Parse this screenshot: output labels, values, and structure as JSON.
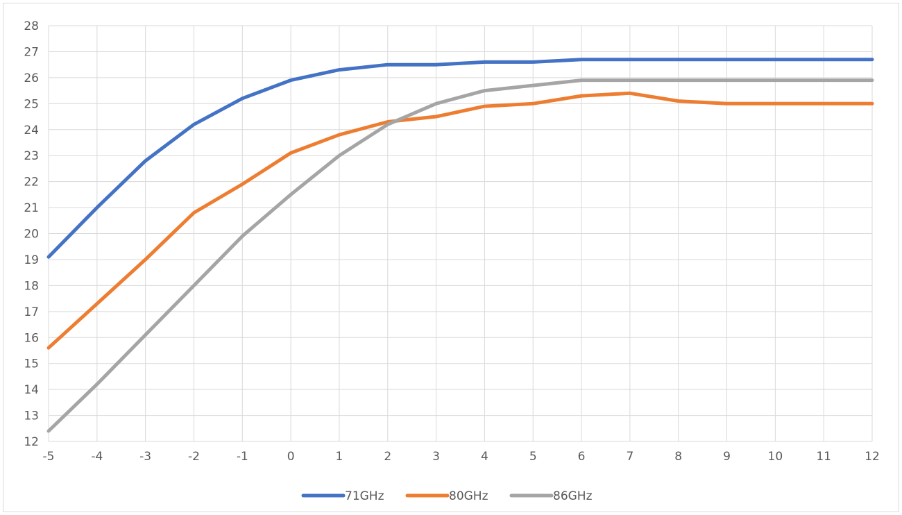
{
  "chart_data": {
    "type": "line",
    "title": "",
    "xlabel": "",
    "ylabel": "",
    "x": [
      -5,
      -4,
      -3,
      -2,
      -1,
      0,
      1,
      2,
      3,
      4,
      5,
      6,
      7,
      8,
      9,
      10,
      11,
      12
    ],
    "xlim": [
      -5,
      12
    ],
    "ylim": [
      12,
      28
    ],
    "y_ticks": [
      "12",
      "13",
      "14",
      "15",
      "16",
      "17",
      "18",
      "19",
      "20",
      "21",
      "22",
      "23",
      "24",
      "25",
      "26",
      "27",
      "28"
    ],
    "x_ticks": [
      "-5",
      "-4",
      "-3",
      "-2",
      "-1",
      "0",
      "1",
      "2",
      "3",
      "4",
      "5",
      "6",
      "7",
      "8",
      "9",
      "10",
      "11",
      "12"
    ],
    "grid": true,
    "legend_position": "bottom",
    "series": [
      {
        "name": "71GHz",
        "color": "#4472c4",
        "values": [
          19.1,
          21.0,
          22.8,
          24.2,
          25.2,
          25.9,
          26.3,
          26.5,
          26.5,
          26.6,
          26.6,
          26.7,
          26.7,
          26.7,
          26.7,
          26.7,
          26.7,
          26.7
        ]
      },
      {
        "name": "80GHz",
        "color": "#ed7d31",
        "values": [
          15.6,
          17.3,
          19.0,
          20.8,
          21.9,
          23.1,
          23.8,
          24.3,
          24.5,
          24.9,
          25.0,
          25.3,
          25.4,
          25.1,
          25.0,
          25.0,
          25.0,
          25.0
        ]
      },
      {
        "name": "86GHz",
        "color": "#a5a5a5",
        "values": [
          12.4,
          14.2,
          16.1,
          18.0,
          19.9,
          21.5,
          23.0,
          24.2,
          25.0,
          25.5,
          25.7,
          25.9,
          25.9,
          25.9,
          25.9,
          25.9,
          25.9,
          25.9
        ]
      }
    ]
  }
}
